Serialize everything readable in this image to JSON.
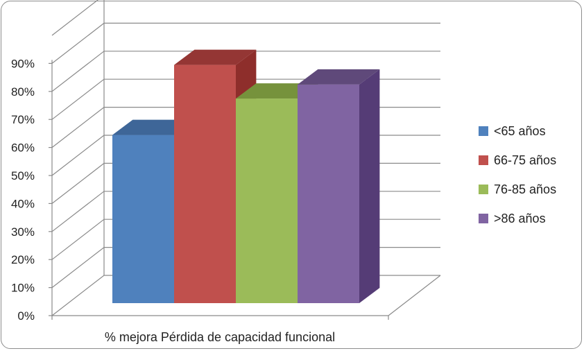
{
  "chart_data": {
    "type": "bar",
    "categories": [
      "% mejora Pérdida de capacidad funcional"
    ],
    "series": [
      {
        "name": "<65 años",
        "values": [
          60
        ],
        "color": "#4F81BD",
        "side": "#3A6496",
        "top": "#3E6698"
      },
      {
        "name": "66-75 años",
        "values": [
          85
        ],
        "color": "#C0504D",
        "side": "#8E2E2B",
        "top": "#943634"
      },
      {
        "name": "76-85 años",
        "values": [
          73
        ],
        "color": "#9BBB59",
        "side": "#6F8C3A",
        "top": "#76923C"
      },
      {
        "name": ">86 años",
        "values": [
          78
        ],
        "color": "#8064A2",
        "side": "#553C76",
        "top": "#5F497A"
      }
    ],
    "yticks": [
      "0%",
      "10%",
      "20%",
      "30%",
      "40%",
      "50%",
      "60%",
      "70%",
      "80%",
      "90%"
    ],
    "ylim": [
      0,
      100
    ],
    "grid": true,
    "legend": "right",
    "projection": "3d"
  }
}
